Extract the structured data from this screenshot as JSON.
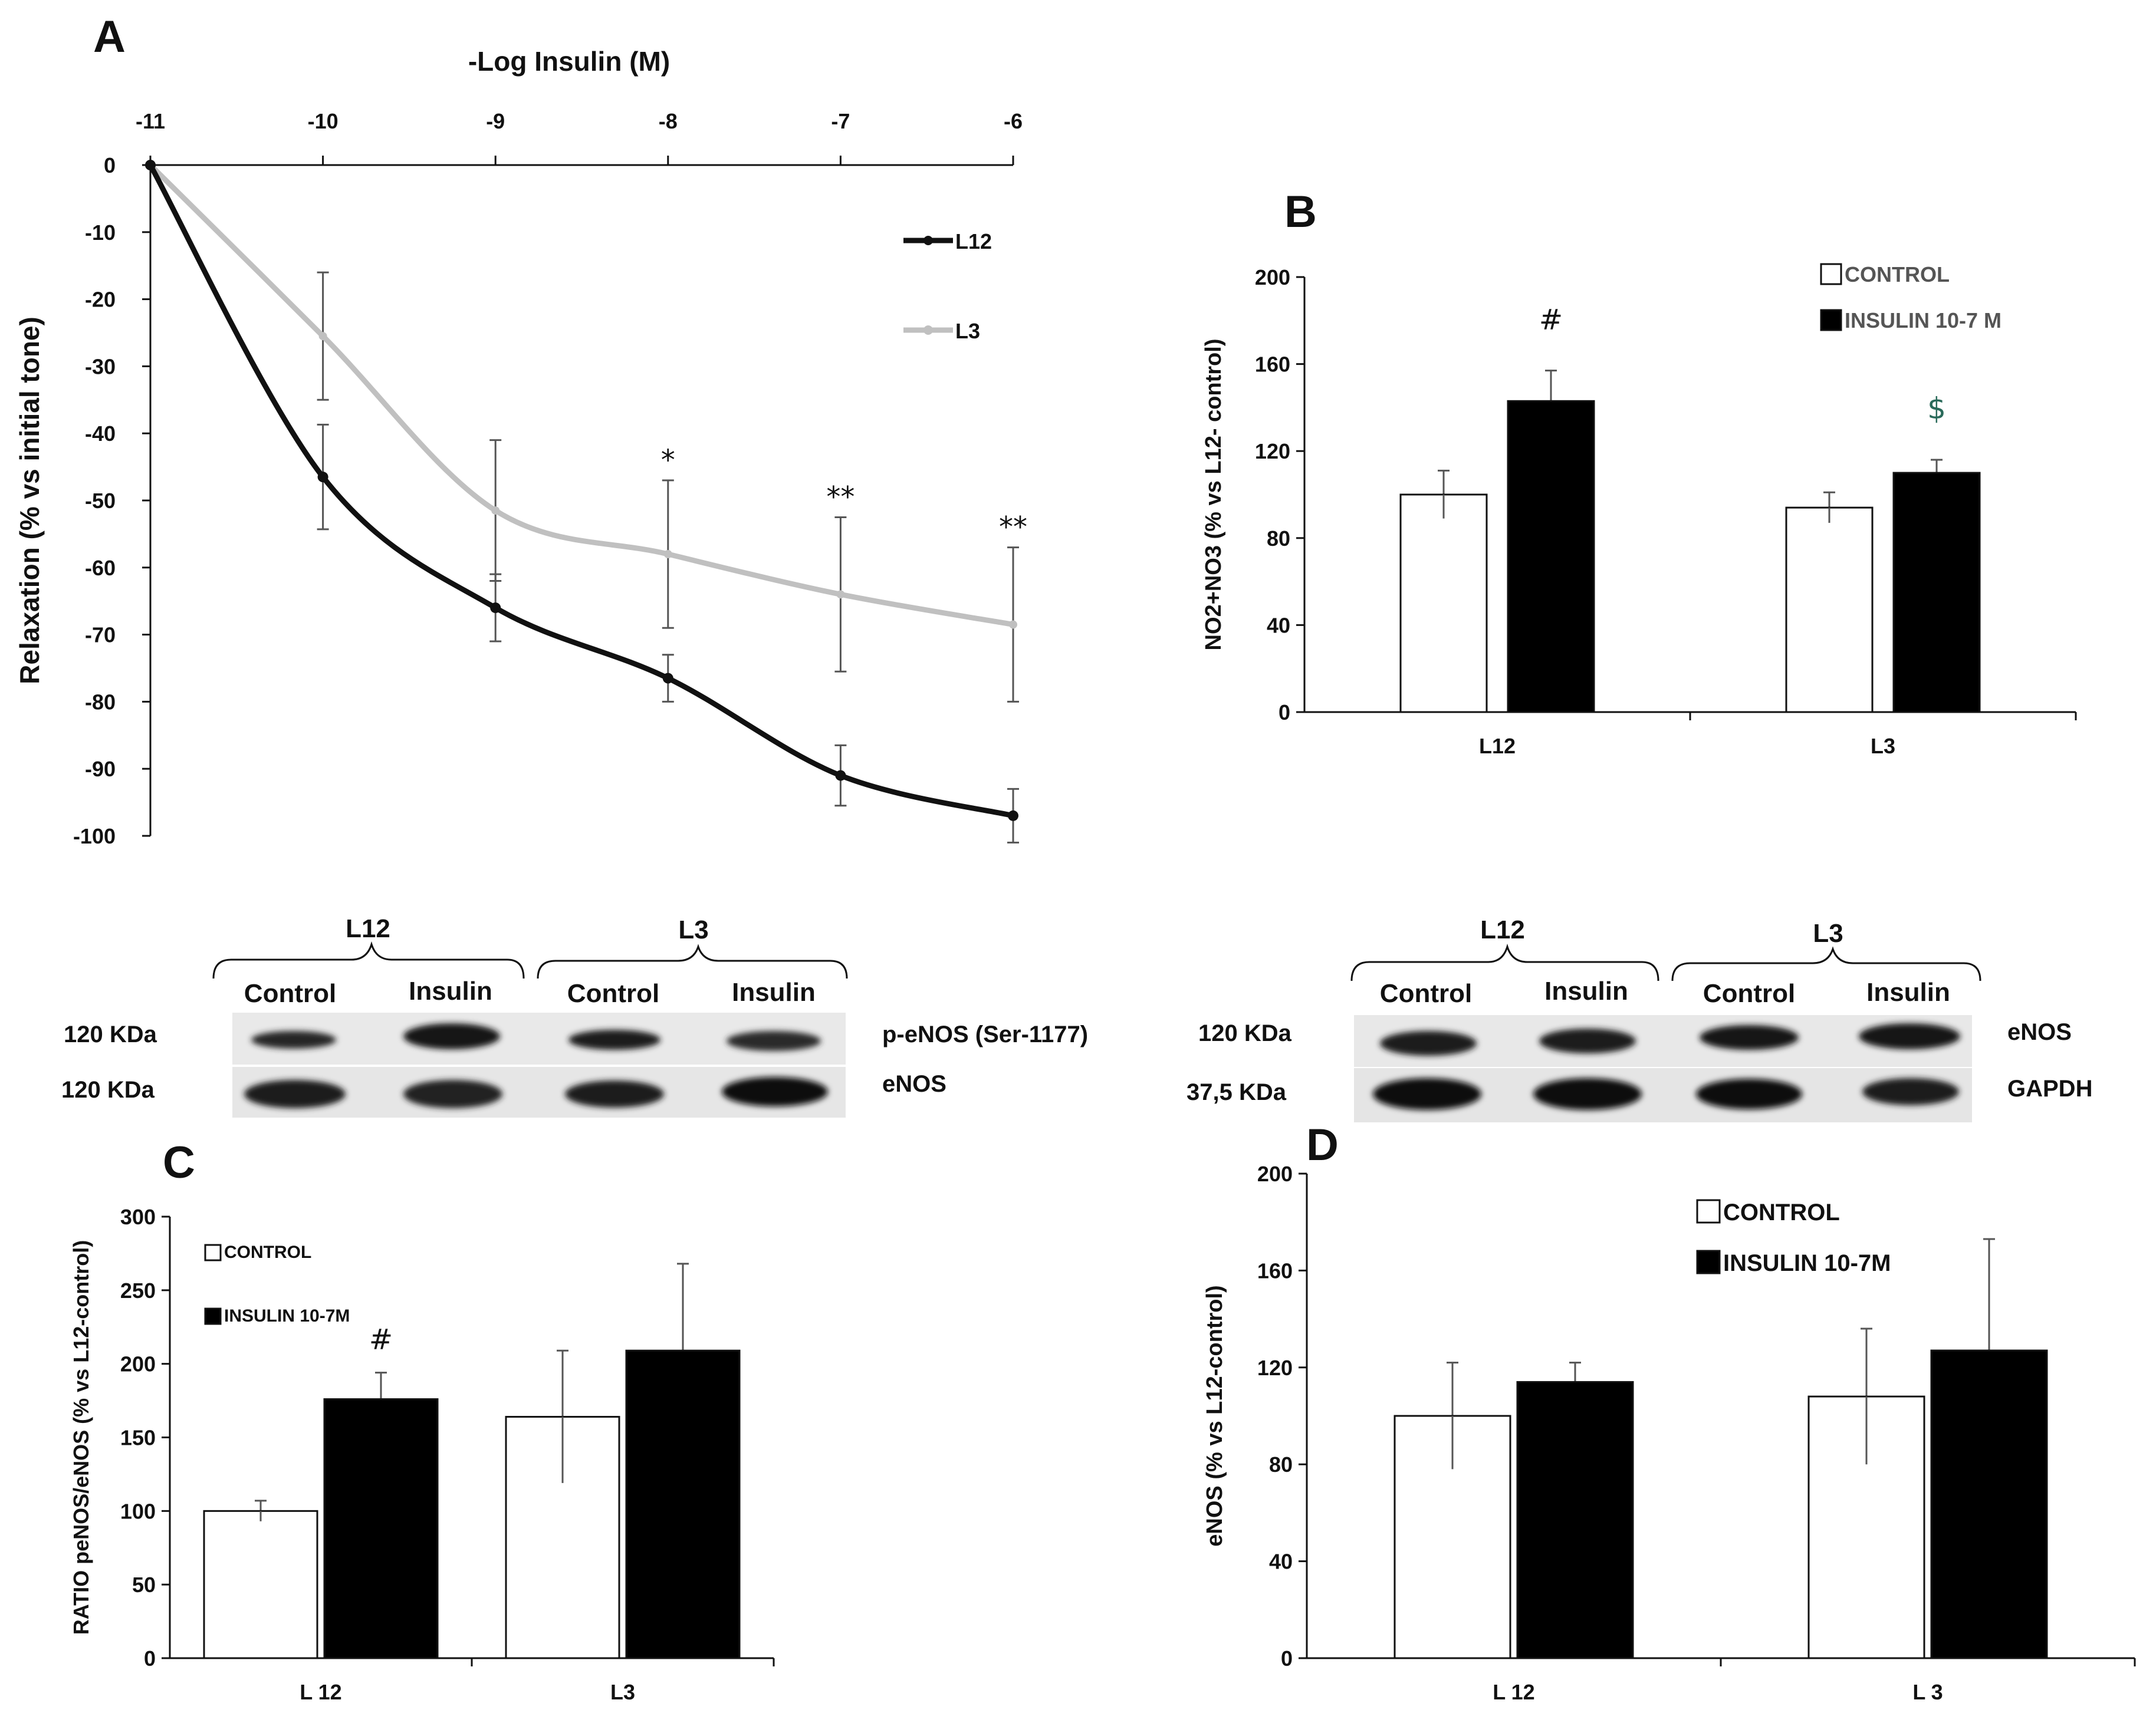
{
  "panels": {
    "A": {
      "letter": "A"
    },
    "B": {
      "letter": "B"
    },
    "C": {
      "letter": "C"
    },
    "D": {
      "letter": "D"
    }
  },
  "chart_data": [
    {
      "id": "A",
      "type": "line",
      "title": "",
      "xlabel": "-Log Insulin (M)",
      "ylabel": "Relaxation (% vs initial tone)",
      "x_tick_labels": [
        "-11",
        "-10",
        "-9",
        "-8",
        "-7",
        "-6"
      ],
      "x": [
        -11,
        -10,
        -9,
        -8,
        -7,
        -6
      ],
      "ylim": [
        -100,
        0
      ],
      "y_ticks": [
        0,
        -10,
        -20,
        -30,
        -40,
        -50,
        -60,
        -70,
        -80,
        -90,
        -100
      ],
      "x_axis_position": "top",
      "series": [
        {
          "name": "L12",
          "color": "#111111",
          "values": [
            0,
            -46.5,
            -66,
            -76.5,
            -91,
            -97
          ],
          "err": [
            0,
            7.8,
            5,
            3.5,
            4.5,
            4
          ]
        },
        {
          "name": "L3",
          "color": "#c0c0c0",
          "values": [
            0,
            -25.5,
            -51.5,
            -58,
            -64,
            -68.5
          ],
          "err": [
            0,
            9.5,
            10.5,
            11,
            11.5,
            11.5
          ]
        }
      ],
      "annotations": [
        {
          "x": -8,
          "text": "*"
        },
        {
          "x": -7,
          "text": "**"
        },
        {
          "x": -6,
          "text": "**"
        }
      ],
      "legend_position": "top-right"
    },
    {
      "id": "B",
      "type": "bar",
      "ylabel": "NO2+NO3 (% vs L12- control)",
      "categories": [
        "L12",
        "L3"
      ],
      "ylim": [
        0,
        200
      ],
      "y_ticks": [
        0,
        40,
        80,
        120,
        160,
        200
      ],
      "series": [
        {
          "name": "CONTROL",
          "color": "#ffffff",
          "values": [
            100,
            94
          ],
          "err": [
            11,
            7
          ]
        },
        {
          "name": "INSULIN 10-7 M",
          "color": "#000000",
          "values": [
            143,
            110
          ],
          "err": [
            14,
            6
          ]
        }
      ],
      "annotations": [
        {
          "category": "L12",
          "text": "#"
        },
        {
          "category": "L3",
          "text": "$"
        }
      ],
      "legend_position": "top-right"
    },
    {
      "id": "C",
      "type": "bar",
      "ylabel": "RATIO peNOS/eNOS (% vs L12-control)",
      "categories": [
        "L 12",
        "L3"
      ],
      "ylim": [
        0,
        300
      ],
      "y_ticks": [
        0,
        50,
        100,
        150,
        200,
        250,
        300
      ],
      "series": [
        {
          "name": "CONTROL",
          "color": "#ffffff",
          "values": [
            100,
            164
          ],
          "err": [
            7,
            45
          ]
        },
        {
          "name": "INSULIN 10-7M",
          "color": "#000000",
          "values": [
            176,
            209
          ],
          "err": [
            18,
            59
          ]
        }
      ],
      "annotations": [
        {
          "category": "L 12",
          "text": "#"
        }
      ],
      "legend_position": "top-left"
    },
    {
      "id": "D",
      "type": "bar",
      "ylabel": "eNOS (% vs L12-control)",
      "categories": [
        "L 12",
        "L 3"
      ],
      "ylim": [
        0,
        200
      ],
      "y_ticks": [
        0,
        40,
        80,
        120,
        160,
        200
      ],
      "series": [
        {
          "name": "CONTROL",
          "color": "#ffffff",
          "values": [
            100,
            108
          ],
          "err": [
            22,
            28
          ]
        },
        {
          "name": "INSULIN 10-7M",
          "color": "#000000",
          "values": [
            114,
            127
          ],
          "err": [
            8,
            46
          ]
        }
      ],
      "annotations": [],
      "legend_position": "top-center"
    }
  ],
  "blots": {
    "left": {
      "groups": [
        "L12",
        "L3"
      ],
      "lanes": [
        "Control",
        "Insulin",
        "Control",
        "Insulin"
      ],
      "rows": [
        {
          "kda": "120 KDa",
          "protein": "p-eNOS (Ser-1177)"
        },
        {
          "kda": "120 KDa",
          "protein": "eNOS"
        }
      ]
    },
    "right": {
      "groups": [
        "L12",
        "L3"
      ],
      "lanes": [
        "Control",
        "Insulin",
        "Control",
        "Insulin"
      ],
      "rows": [
        {
          "kda": "120 KDa",
          "protein": "eNOS"
        },
        {
          "kda": "37,5 KDa",
          "protein": "GAPDH"
        }
      ]
    }
  }
}
